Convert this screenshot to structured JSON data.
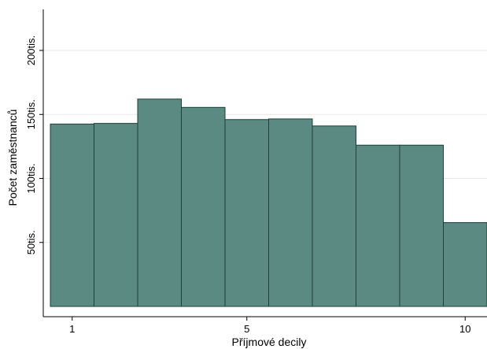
{
  "chart_data": {
    "type": "bar",
    "xlabel": "Příjmové decily",
    "ylabel": "Počet zaměstnanců",
    "categories": [
      1,
      2,
      3,
      4,
      5,
      6,
      7,
      8,
      9,
      10
    ],
    "values": [
      142500,
      143000,
      162000,
      155500,
      146000,
      146500,
      141000,
      126000,
      126000,
      65500
    ],
    "xticks": [
      1,
      5,
      10
    ],
    "xtick_labels": [
      "1",
      "5",
      "10"
    ],
    "yticks": [
      50000,
      100000,
      150000,
      200000
    ],
    "ytick_labels": [
      "50tis.",
      "100tis.",
      "150tis.",
      "200tis."
    ],
    "xlim": [
      0.5,
      10.5
    ],
    "ylim": [
      -8000,
      232000
    ],
    "grid": true,
    "bar_color": "#5a8a82",
    "bar_edge_color": "#1f3f38"
  }
}
